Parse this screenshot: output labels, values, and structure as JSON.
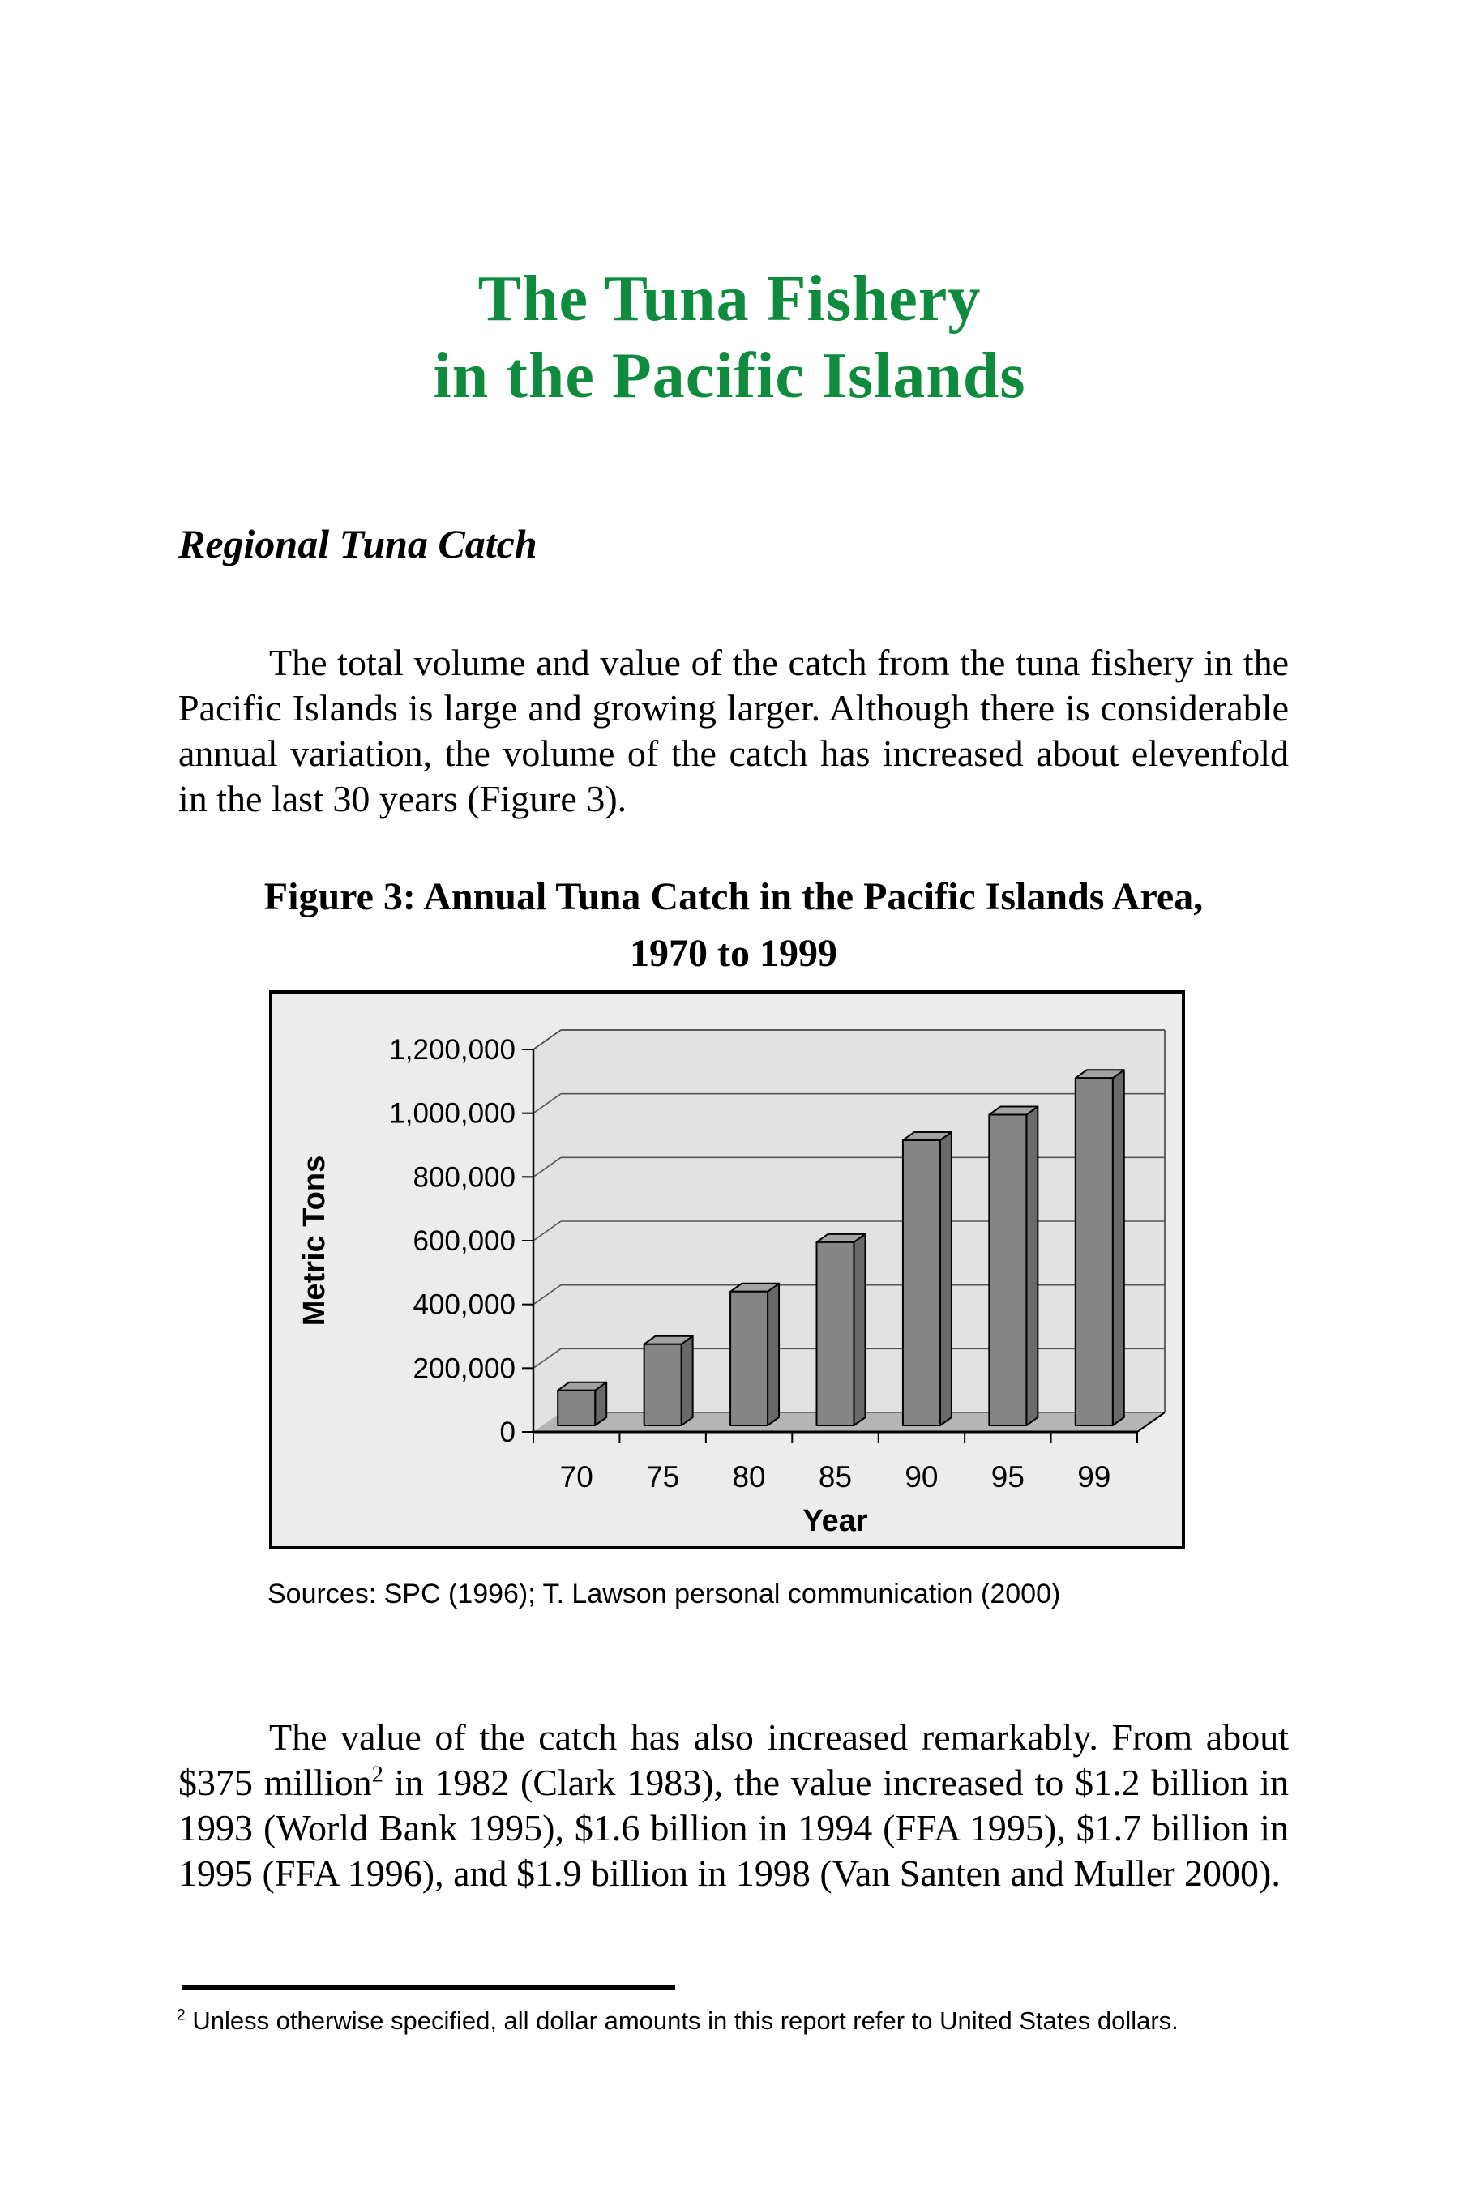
{
  "page": {
    "title_line1": "The Tuna Fishery",
    "title_line2": "in the Pacific Islands",
    "title_color": "#0e8b3d"
  },
  "section": {
    "heading": "Regional Tuna Catch"
  },
  "paragraph1": "The total volume and value of the catch from the tuna fishery in the Pacific Islands is large and growing larger. Although there is considerable annual variation, the volume of the catch has increased about elevenfold in the last 30 years (Figure 3).",
  "figure": {
    "caption_line1": "Figure 3: Annual Tuna Catch in the Pacific Islands Area,",
    "caption_line2": "1970 to 1999",
    "sources": "Sources: SPC (1996); T. Lawson personal communication (2000)"
  },
  "chart_data": {
    "type": "bar",
    "style": "3d-grayscale-column",
    "title": "Figure 3: Annual Tuna Catch in the Pacific Islands Area, 1970 to 1999",
    "categories": [
      "70",
      "75",
      "80",
      "85",
      "90",
      "95",
      "99"
    ],
    "values": [
      110000,
      255000,
      420000,
      575000,
      895000,
      975000,
      1090000
    ],
    "xlabel": "Year",
    "ylabel": "Metric Tons",
    "ylim": [
      0,
      1200000
    ],
    "ytick_values": [
      0,
      200000,
      400000,
      600000,
      800000,
      1000000,
      1200000
    ],
    "ytick_labels": [
      "0",
      "200,000",
      "400,000",
      "600,000",
      "800,000",
      "1,000,000",
      "1,200,000"
    ],
    "grid": true,
    "legend": false,
    "colors": {
      "bar_front": "#858585",
      "bar_top": "#a2a2a2",
      "bar_side": "#696969",
      "wall": "#e2e2e2",
      "floor": "#b5b5b5",
      "chart_bg": "#ececec",
      "gridline": "#555555"
    }
  },
  "paragraph2": {
    "before_sup": "The value of the catch has also increased remarkably. From about $375 million",
    "sup": "2",
    "after_sup": " in 1982 (Clark 1983), the value increased to $1.2 billion in 1993 (World Bank 1995), $1.6 billion in 1994 (FFA 1995), $1.7 billion in 1995 (FFA 1996), and $1.9 billion in 1998 (Van Santen and Muller 2000)."
  },
  "footnote": {
    "marker": "2",
    "text": "Unless otherwise specified, all dollar amounts in this report refer to United States dollars."
  }
}
